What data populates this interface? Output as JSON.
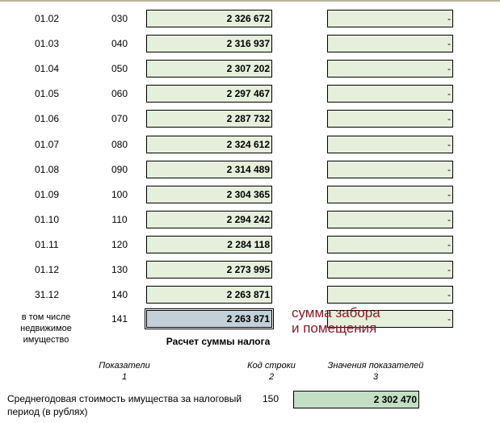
{
  "rows": [
    {
      "date": "01.02",
      "code": "030",
      "value": "2 326 672",
      "value2": "-"
    },
    {
      "date": "01.03",
      "code": "040",
      "value": "2 316 937",
      "value2": "-"
    },
    {
      "date": "01.04",
      "code": "050",
      "value": "2 307 202",
      "value2": "-"
    },
    {
      "date": "01.05",
      "code": "060",
      "value": "2 297 467",
      "value2": "-"
    },
    {
      "date": "01.06",
      "code": "070",
      "value": "2 287 732",
      "value2": "-"
    },
    {
      "date": "01.07",
      "code": "080",
      "value": "2 324 612",
      "value2": "-"
    },
    {
      "date": "01.08",
      "code": "090",
      "value": "2 314 489",
      "value2": "-"
    },
    {
      "date": "01.09",
      "code": "100",
      "value": "2 304 365",
      "value2": "-"
    },
    {
      "date": "01.10",
      "code": "110",
      "value": "2 294 242",
      "value2": "-"
    },
    {
      "date": "01.11",
      "code": "120",
      "value": "2 284 118",
      "value2": "-"
    },
    {
      "date": "01.12",
      "code": "130",
      "value": "2 273 995",
      "value2": "-"
    },
    {
      "date": "31.12",
      "code": "140",
      "value": "2 263 871",
      "value2": "-"
    }
  ],
  "realty": {
    "label": "в том числе недвижимое имущество",
    "code": "141",
    "value": "2 263 871",
    "value2": "-"
  },
  "note": "сумма забора и помещения",
  "section_title": "Расчет суммы налога",
  "headers": [
    {
      "label": "Показатели",
      "num": "1"
    },
    {
      "label": "Код строки",
      "num": "2"
    },
    {
      "label": "Значения показателей",
      "num": "3"
    }
  ],
  "avg": {
    "label": "Среднегодовая стоимость имущества за налоговый период (в рублях)",
    "code": "150",
    "value": "2 302 470"
  }
}
